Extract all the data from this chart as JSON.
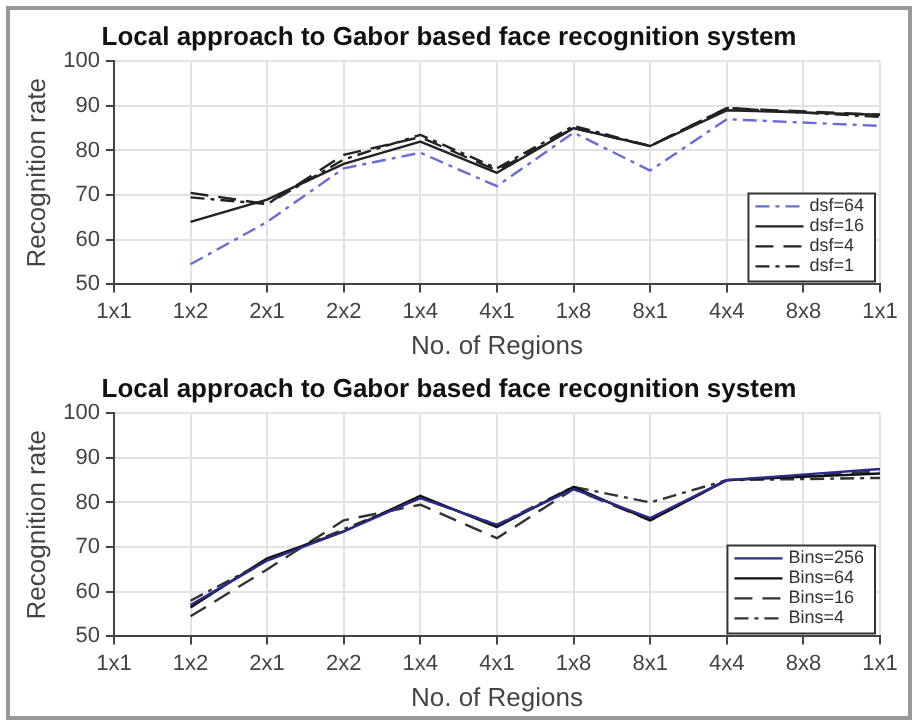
{
  "chart_data": [
    {
      "type": "line",
      "title": "Local approach to Gabor based face recognition system",
      "xlabel": "No. of Regions",
      "ylabel": "Recognition rate",
      "categories": [
        "1x1",
        "1x2",
        "2x1",
        "2x2",
        "1x4",
        "4x1",
        "1x8",
        "8x1",
        "4x4",
        "8x8",
        "1x1"
      ],
      "ylim": [
        50,
        100
      ],
      "yticks": [
        50,
        60,
        70,
        80,
        90,
        100
      ],
      "grid": true,
      "legend": "bottom right",
      "marker": "none",
      "series": [
        {
          "name": "dsf=64",
          "color": "#6b6bd6",
          "line_style": "dashdot",
          "values": [
            null,
            54.5,
            64,
            76,
            79.5,
            72,
            84,
            75.5,
            87,
            null,
            85.5
          ]
        },
        {
          "name": "dsf=16",
          "color": "#222222",
          "line_style": "solid",
          "values": [
            null,
            64,
            69,
            77,
            82,
            75,
            85,
            81,
            89,
            null,
            88
          ]
        },
        {
          "name": "dsf=4",
          "color": "#222222",
          "line_style": "dashed",
          "values": [
            null,
            70.5,
            68,
            79,
            83,
            75.5,
            85,
            81,
            89.5,
            null,
            88
          ]
        },
        {
          "name": "dsf=1",
          "color": "#222222",
          "line_style": "dashdot",
          "values": [
            null,
            69.5,
            68,
            78,
            83.5,
            76,
            85.5,
            81,
            89.5,
            null,
            87.5
          ]
        }
      ]
    },
    {
      "type": "line",
      "title": "Local approach to Gabor based face recognition system",
      "xlabel": "No. of Regions",
      "ylabel": "Recognition rate",
      "categories": [
        "1x1",
        "1x2",
        "2x1",
        "2x2",
        "1x4",
        "4x1",
        "1x8",
        "8x1",
        "4x4",
        "8x8",
        "1x1"
      ],
      "ylim": [
        50,
        100
      ],
      "yticks": [
        50,
        60,
        70,
        80,
        90,
        100
      ],
      "grid": true,
      "legend": "bottom right",
      "marker": "none",
      "series": [
        {
          "name": "Bins=256",
          "color": "#2a2a8a",
          "line_style": "solid",
          "values": [
            null,
            57,
            67,
            73.5,
            81,
            75,
            83,
            76.5,
            85,
            null,
            87.5
          ]
        },
        {
          "name": "Bins=64",
          "color": "#111111",
          "line_style": "solid",
          "values": [
            null,
            56.5,
            67.5,
            73.5,
            81.5,
            74.5,
            83.5,
            76,
            85,
            null,
            86.5
          ]
        },
        {
          "name": "Bins=16",
          "color": "#333333",
          "line_style": "dashed",
          "values": [
            null,
            54.5,
            65,
            76,
            79.5,
            72,
            83,
            76,
            85,
            null,
            87
          ]
        },
        {
          "name": "Bins=4",
          "color": "#333333",
          "line_style": "dashdot",
          "values": [
            null,
            58,
            67,
            74,
            81,
            75,
            83.5,
            80,
            85,
            null,
            85.5
          ]
        }
      ]
    }
  ]
}
